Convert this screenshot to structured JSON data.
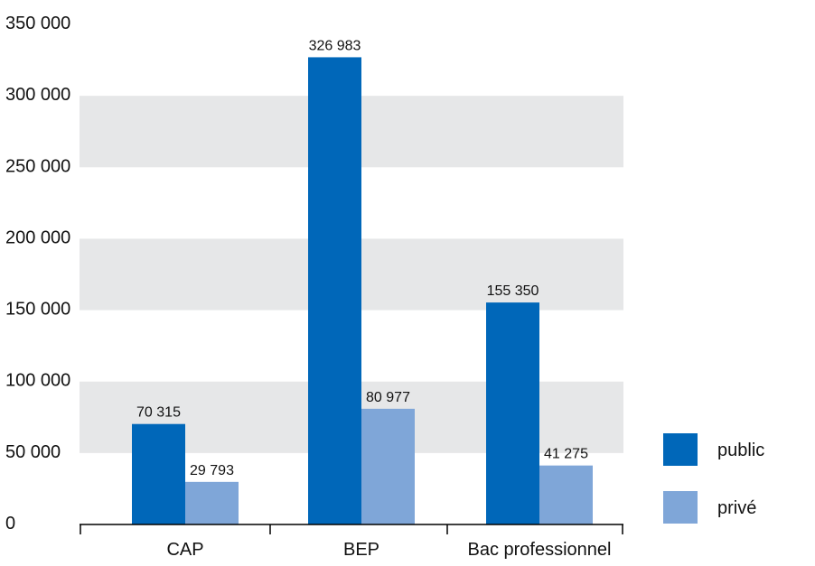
{
  "chart_data": {
    "type": "bar",
    "categories": [
      "CAP",
      "BEP",
      "Bac professionnel"
    ],
    "series": [
      {
        "name": "public",
        "values": [
          70315,
          326983,
          155350
        ],
        "labels": [
          "70 315",
          "326 983",
          "155 350"
        ],
        "color": "#0067b9"
      },
      {
        "name": "privé",
        "values": [
          29793,
          80977,
          41275
        ],
        "labels": [
          "29 793",
          "80 977",
          "41 275"
        ],
        "color": "#7fa6d8"
      }
    ],
    "yticks": [
      0,
      50000,
      100000,
      150000,
      200000,
      250000,
      300000,
      350000
    ],
    "ytick_labels": [
      "0",
      "50 000",
      "100 000",
      "150 000",
      "200 000",
      "250 000",
      "300 000",
      "350 000"
    ],
    "ylim": [
      0,
      350000
    ],
    "title": "",
    "xlabel": "",
    "ylabel": "",
    "grid": "alternating horizontal bands",
    "band_color": "#e6e7e8",
    "legend_position": "right"
  }
}
